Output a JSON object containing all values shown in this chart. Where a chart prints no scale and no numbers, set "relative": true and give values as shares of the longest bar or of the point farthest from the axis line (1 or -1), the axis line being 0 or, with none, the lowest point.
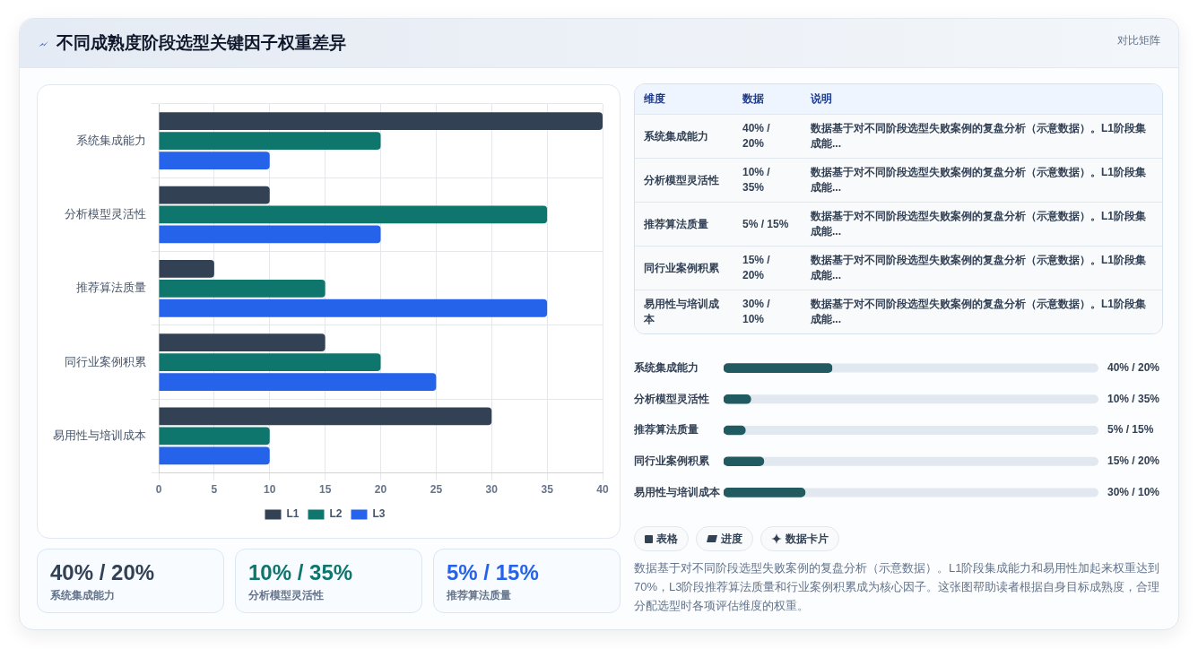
{
  "chart_data": [
    {
      "type": "bar",
      "title": "不同成熟度阶段选型关键因子权重差异",
      "orientation": "horizontal",
      "categories": [
        "系统集成能力",
        "分析模型灵活性",
        "推荐算法质量",
        "同行业案例积累",
        "易用性与培训成本"
      ],
      "series": [
        {
          "name": "L1",
          "color": "#334155",
          "values": [
            40,
            10,
            5,
            15,
            30
          ]
        },
        {
          "name": "L2",
          "color": "#0f766e",
          "values": [
            20,
            35,
            15,
            20,
            10
          ]
        },
        {
          "name": "L3",
          "color": "#2563eb",
          "values": [
            10,
            20,
            35,
            25,
            10
          ]
        }
      ],
      "xlim": [
        0,
        40
      ],
      "xticks": [
        0,
        5,
        10,
        15,
        20,
        25,
        30,
        35,
        40
      ],
      "grid": true,
      "legend": "bottom",
      "annotations": [
        "对比矩阵",
        "数据基于对不同阶段选型失败案例的复盘分析（示意数据）。L1阶段集成能力和易用性加起来权重达到70%，L3阶段推荐算法质量和行业案例积累成为核心因子。这张图帮助读者根据自身目标成熟度，合理分配选型时各项评估维度的权重。"
      ]
    },
    {
      "type": "other",
      "annotations": [
        "40% / 20%",
        "系统集成能力",
        "10% / 35%",
        "分析模型灵活性",
        "5% / 15%",
        "推荐算法质量"
      ],
      "colors": [
        "#334155",
        "#0f766e",
        "#2563eb"
      ]
    },
    {
      "type": "other",
      "annotations": [
        "维度",
        "数据",
        "说明",
        "系统集成能力",
        "40% / 20%",
        "数据基于对不同阶段选型失败案例的复盘分析（示意数据）。L1阶段集成能...",
        "分析模型灵活性",
        "10% / 35%",
        "数据基于对不同阶段选型失败案例的复盘分析（示意数据）。L1阶段集成能...",
        "推荐算法质量",
        "5% / 15%",
        "数据基于对不同阶段选型失败案例的复盘分析（示意数据）。L1阶段集成能...",
        "同行业案例积累",
        "15% / 20%",
        "数据基于对不同阶段选型失败案例的复盘分析（示意数据）。L1阶段集成能...",
        "易用性与培训成本",
        "30% / 10%",
        "数据基于对不同阶段选型失败案例的复盘分析（示意数据）。L1阶段集成能..."
      ]
    },
    {
      "type": "bar",
      "orientation": "horizontal",
      "relative": true,
      "categories": [
        "系统集成能力",
        "分析模型灵活性",
        "推荐算法质量",
        "同行业案例积累",
        "易用性与培训成本"
      ],
      "values": [
        1,
        0.25,
        0.2,
        0.37,
        0.75
      ],
      "color": "#215b61",
      "annotations": [
        "40% / 20%",
        "10% / 35%",
        "5% / 15%",
        "15% / 20%",
        "30% / 10%"
      ]
    },
    {
      "type": "other",
      "annotations": [
        "表格",
        "进度",
        "数据卡片"
      ]
    }
  ]
}
